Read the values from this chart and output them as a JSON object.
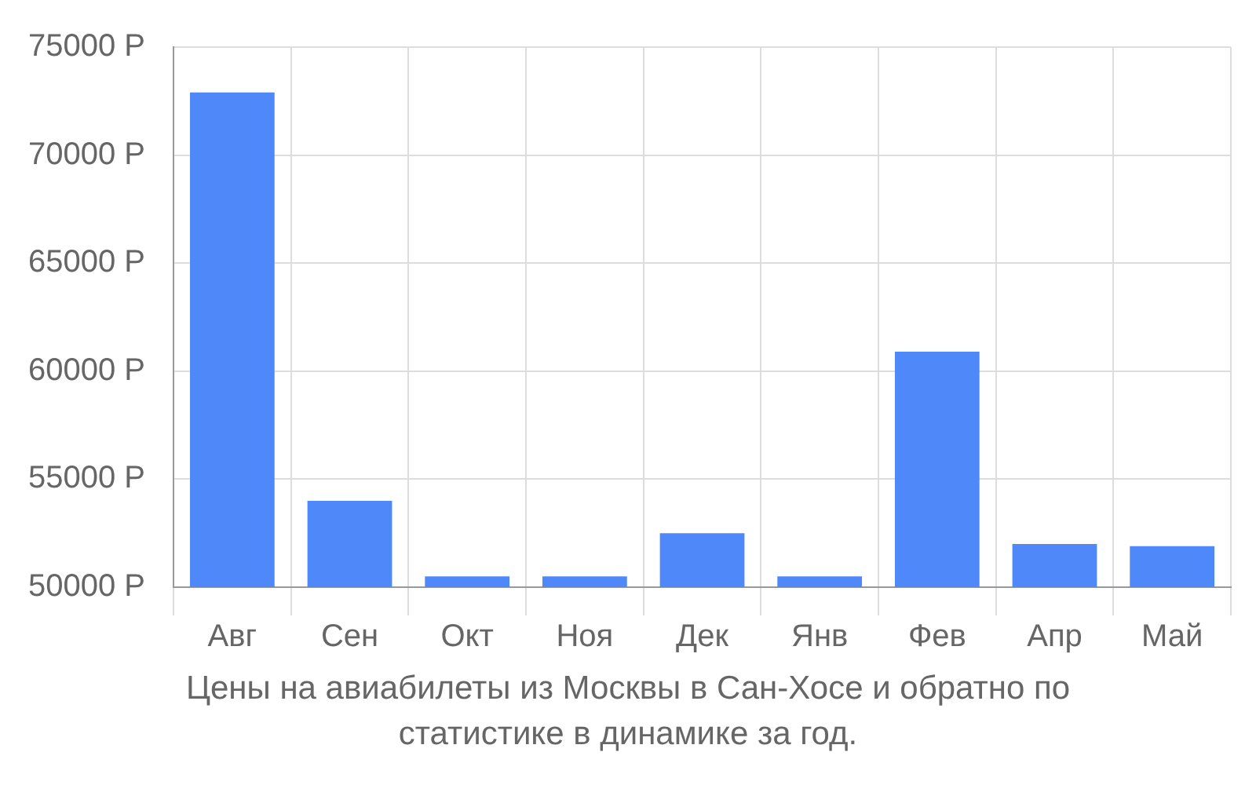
{
  "chart_data": {
    "type": "bar",
    "title": "Цены на авиабилеты из Москвы в Сан-Хосе и обратно по статистике в динамике за год.",
    "categories": [
      "Авг",
      "Сен",
      "Окт",
      "Ноя",
      "Дек",
      "Янв",
      "Фев",
      "Апр",
      "Май"
    ],
    "values": [
      72900,
      54000,
      50500,
      50500,
      52500,
      50500,
      60900,
      52000,
      51900
    ],
    "color": "#4f88f8",
    "ylim": [
      50000,
      75000
    ],
    "yticks": [
      {
        "value": 50000,
        "label": "50000 Р"
      },
      {
        "value": 55000,
        "label": "55000 Р"
      },
      {
        "value": 60000,
        "label": "60000 Р"
      },
      {
        "value": 65000,
        "label": "65000 Р"
      },
      {
        "value": 70000,
        "label": "70000 Р"
      },
      {
        "value": 75000,
        "label": "75000 Р"
      }
    ],
    "grid": true,
    "legend": false
  }
}
